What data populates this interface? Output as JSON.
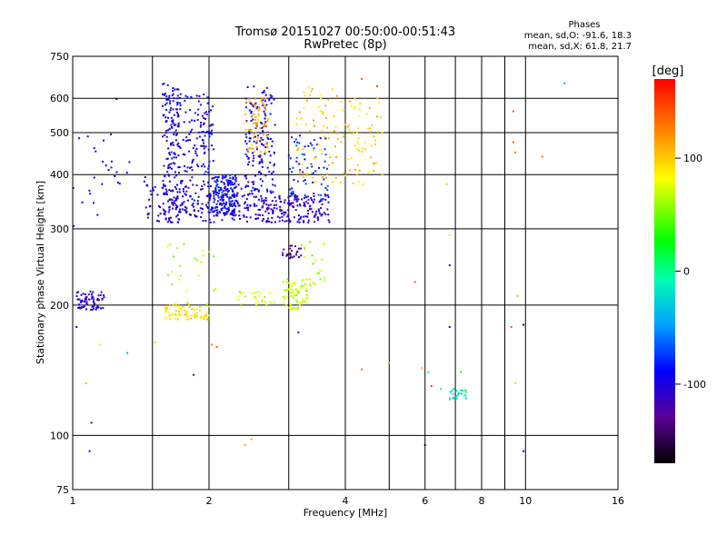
{
  "chart_data": {
    "type": "scatter",
    "title": "Tromsø 20151027 00:50:00-00:51:43",
    "subtitle": "RwPretec (8p)",
    "xlabel": "Frequency [MHz]",
    "ylabel": "Stationary phase Virtual Height [km]",
    "x_scale": "log",
    "y_scale": "log",
    "xlim": [
      1,
      16
    ],
    "ylim": [
      75,
      750
    ],
    "x_ticks": [
      1,
      2,
      4,
      6,
      8,
      10,
      16
    ],
    "x_tick_labels": [
      "1",
      "2",
      "4",
      "6",
      "8",
      "10",
      "16"
    ],
    "x_grid": [
      1.5,
      2,
      3,
      4,
      5,
      6,
      7,
      8,
      9,
      10
    ],
    "y_ticks": [
      75,
      100,
      200,
      300,
      400,
      500,
      600,
      750
    ],
    "y_tick_labels": [
      "75",
      "100",
      "200",
      "300",
      "400",
      "500",
      "600",
      "750"
    ],
    "grid": true,
    "stats": {
      "heading": "Phases",
      "line1": "mean, sd,O: -91.6, 18.3",
      "line2": "mean, sd,X: 61.8, 21.7"
    },
    "colorbar": {
      "label": "[deg]",
      "range": [
        -170,
        170
      ],
      "ticks": [
        -100,
        0,
        100
      ],
      "tick_labels": [
        "-100",
        "0",
        "100"
      ],
      "colormap": "rainbow"
    },
    "groups": [
      {
        "x_range": [
          1.58,
          1.72
        ],
        "y_range": [
          310,
          650
        ],
        "phase": -100,
        "density": "dense"
      },
      {
        "x_range": [
          1.72,
          2.05
        ],
        "y_range": [
          320,
          620
        ],
        "phase": -95,
        "density": "dense"
      },
      {
        "x_range": [
          1.45,
          2.6
        ],
        "y_range": [
          310,
          380
        ],
        "phase": -105,
        "density": "dense"
      },
      {
        "x_range": [
          2.05,
          2.3
        ],
        "y_range": [
          320,
          400
        ],
        "phase": -90,
        "density": "dense"
      },
      {
        "x_range": [
          2.4,
          2.8
        ],
        "y_range": [
          330,
          640
        ],
        "phase": -100,
        "density": "dense"
      },
      {
        "x_range": [
          2.6,
          3.7
        ],
        "y_range": [
          310,
          360
        ],
        "phase": -110,
        "density": "dense"
      },
      {
        "x_range": [
          3.0,
          3.7
        ],
        "y_range": [
          350,
          500
        ],
        "phase": -80,
        "density": "medium"
      },
      {
        "x_range": [
          2.4,
          2.7
        ],
        "y_range": [
          450,
          600
        ],
        "phase": 110,
        "density": "medium"
      },
      {
        "x_range": [
          3.1,
          3.9
        ],
        "y_range": [
          380,
          640
        ],
        "phase": 100,
        "density": "medium"
      },
      {
        "x_range": [
          3.9,
          4.9
        ],
        "y_range": [
          380,
          600
        ],
        "phase": 95,
        "density": "medium"
      },
      {
        "x_range": [
          1.6,
          2.0
        ],
        "y_range": [
          185,
          200
        ],
        "phase": 90,
        "density": "medium"
      },
      {
        "x_range": [
          1.6,
          2.1
        ],
        "y_range": [
          200,
          280
        ],
        "phase": 60,
        "density": "sparse"
      },
      {
        "x_range": [
          2.3,
          2.8
        ],
        "y_range": [
          200,
          215
        ],
        "phase": 70,
        "density": "sparse"
      },
      {
        "x_range": [
          2.9,
          3.3
        ],
        "y_range": [
          195,
          230
        ],
        "phase": 70,
        "density": "medium"
      },
      {
        "x_range": [
          3.2,
          3.6
        ],
        "y_range": [
          220,
          280
        ],
        "phase": 60,
        "density": "sparse"
      },
      {
        "x_range": [
          2.9,
          3.2
        ],
        "y_range": [
          255,
          275
        ],
        "phase": -130,
        "density": "sparse"
      },
      {
        "x_range": [
          1.02,
          1.18
        ],
        "y_range": [
          195,
          215
        ],
        "phase": -110,
        "density": "medium"
      },
      {
        "x_range": [
          1.0,
          1.45
        ],
        "y_range": [
          300,
          500
        ],
        "phase": -100,
        "density": "sparse"
      },
      {
        "x_range": [
          6.8,
          7.4
        ],
        "y_range": [
          121,
          128
        ],
        "phase": -10,
        "density": "sparse"
      }
    ],
    "isolated_points": [
      {
        "x": 1.25,
        "y": 598,
        "phase": -165
      },
      {
        "x": 1.2,
        "y": 410,
        "phase": -150
      },
      {
        "x": 1.08,
        "y": 490,
        "phase": -110
      },
      {
        "x": 1.05,
        "y": 345,
        "phase": -100
      },
      {
        "x": 1.1,
        "y": 107,
        "phase": -110
      },
      {
        "x": 1.09,
        "y": 92,
        "phase": -100
      },
      {
        "x": 1.07,
        "y": 132,
        "phase": 110
      },
      {
        "x": 1.15,
        "y": 162,
        "phase": 90
      },
      {
        "x": 1.32,
        "y": 155,
        "phase": -40
      },
      {
        "x": 1.02,
        "y": 178,
        "phase": -100
      },
      {
        "x": 1.52,
        "y": 164,
        "phase": 100
      },
      {
        "x": 1.85,
        "y": 138,
        "phase": -130
      },
      {
        "x": 2.03,
        "y": 162,
        "phase": 130
      },
      {
        "x": 2.08,
        "y": 160,
        "phase": 140
      },
      {
        "x": 2.4,
        "y": 95,
        "phase": 110
      },
      {
        "x": 2.48,
        "y": 98,
        "phase": 110
      },
      {
        "x": 3.15,
        "y": 173,
        "phase": -120
      },
      {
        "x": 4.35,
        "y": 142,
        "phase": 130
      },
      {
        "x": 5.0,
        "y": 147,
        "phase": 110
      },
      {
        "x": 4.35,
        "y": 665,
        "phase": 140
      },
      {
        "x": 4.7,
        "y": 640,
        "phase": 150
      },
      {
        "x": 5.7,
        "y": 226,
        "phase": 140
      },
      {
        "x": 6.0,
        "y": 95,
        "phase": -160
      },
      {
        "x": 5.9,
        "y": 143,
        "phase": 100
      },
      {
        "x": 6.1,
        "y": 140,
        "phase": 10
      },
      {
        "x": 6.2,
        "y": 130,
        "phase": 150
      },
      {
        "x": 6.5,
        "y": 128,
        "phase": 0
      },
      {
        "x": 6.8,
        "y": 178,
        "phase": -110
      },
      {
        "x": 6.8,
        "y": 247,
        "phase": -110
      },
      {
        "x": 6.8,
        "y": 290,
        "phase": 90
      },
      {
        "x": 6.7,
        "y": 380,
        "phase": 60
      },
      {
        "x": 7.2,
        "y": 140,
        "phase": 30
      },
      {
        "x": 9.4,
        "y": 560,
        "phase": 140
      },
      {
        "x": 9.4,
        "y": 475,
        "phase": 140
      },
      {
        "x": 9.5,
        "y": 450,
        "phase": 130
      },
      {
        "x": 9.6,
        "y": 210,
        "phase": 110
      },
      {
        "x": 9.3,
        "y": 178,
        "phase": 140
      },
      {
        "x": 9.5,
        "y": 132,
        "phase": 100
      },
      {
        "x": 9.9,
        "y": 92,
        "phase": -110
      },
      {
        "x": 9.9,
        "y": 180,
        "phase": -150
      },
      {
        "x": 10.9,
        "y": 440,
        "phase": 130
      },
      {
        "x": 12.2,
        "y": 650,
        "phase": -40
      }
    ]
  }
}
